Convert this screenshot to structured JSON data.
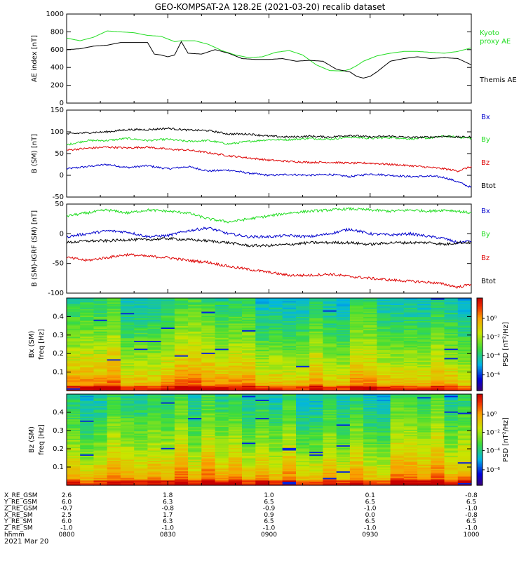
{
  "title": "GEO-KOMPSAT-2A 128.2E (2021-03-20) recalib dataset",
  "colors": {
    "black": "#000000",
    "green": "#22dd22",
    "blue": "#0000cc",
    "red": "#dd0000",
    "kyoto": "#22dd22"
  },
  "chart_data": [
    {
      "type": "line",
      "ylabel": "AE index [nT]",
      "ylim": [
        0,
        1000
      ],
      "yticks": [
        "0",
        "200",
        "400",
        "600",
        "800",
        "1000"
      ],
      "x_range": [
        "08:00",
        "10:00"
      ],
      "series": [
        {
          "name": "Kyoto proxy AE",
          "color": "#22dd22",
          "x": [
            0,
            4,
            8,
            12,
            16,
            20,
            24,
            28,
            30,
            32,
            34,
            38,
            42,
            46,
            50,
            54,
            58,
            62,
            66,
            70,
            74,
            78,
            82,
            84,
            86,
            88,
            92,
            96,
            100,
            104,
            108,
            112,
            116,
            120
          ],
          "values": [
            730,
            700,
            740,
            810,
            800,
            790,
            760,
            750,
            720,
            690,
            700,
            700,
            660,
            590,
            540,
            510,
            520,
            570,
            590,
            540,
            430,
            365,
            360,
            380,
            420,
            470,
            530,
            560,
            580,
            580,
            570,
            560,
            580,
            620
          ]
        },
        {
          "name": "Themis AE",
          "color": "#000000",
          "x": [
            0,
            4,
            8,
            12,
            16,
            20,
            24,
            26,
            28,
            30,
            32,
            34,
            36,
            40,
            44,
            48,
            52,
            56,
            60,
            64,
            68,
            72,
            76,
            80,
            84,
            86,
            88,
            90,
            92,
            96,
            100,
            104,
            108,
            112,
            116,
            120
          ],
          "values": [
            600,
            610,
            640,
            650,
            680,
            680,
            680,
            550,
            540,
            520,
            540,
            690,
            560,
            550,
            600,
            560,
            500,
            490,
            490,
            500,
            470,
            480,
            470,
            380,
            350,
            300,
            280,
            300,
            350,
            470,
            500,
            520,
            500,
            510,
            500,
            430
          ]
        }
      ]
    },
    {
      "type": "line",
      "ylabel": "B (SM) [nT]",
      "ylim": [
        -50,
        150
      ],
      "yticks": [
        "-50",
        "0",
        "50",
        "100",
        "150"
      ],
      "series": [
        {
          "name": "Bx",
          "color": "#0000cc",
          "x": [
            0,
            6,
            12,
            18,
            24,
            30,
            36,
            42,
            48,
            54,
            60,
            66,
            72,
            78,
            84,
            90,
            96,
            102,
            108,
            112,
            116,
            120
          ],
          "values": [
            15,
            20,
            25,
            18,
            22,
            15,
            20,
            10,
            12,
            5,
            0,
            2,
            0,
            2,
            -3,
            3,
            0,
            -3,
            -2,
            -5,
            -15,
            -28
          ]
        },
        {
          "name": "By",
          "color": "#22dd22",
          "x": [
            0,
            6,
            12,
            18,
            24,
            30,
            36,
            42,
            48,
            54,
            60,
            66,
            72,
            78,
            84,
            90,
            96,
            102,
            108,
            112,
            116,
            120
          ],
          "values": [
            70,
            80,
            80,
            85,
            80,
            83,
            78,
            80,
            72,
            78,
            82,
            82,
            85,
            83,
            88,
            85,
            87,
            84,
            86,
            90,
            88,
            85
          ]
        },
        {
          "name": "Bz",
          "color": "#dd0000",
          "x": [
            0,
            6,
            12,
            18,
            24,
            30,
            36,
            42,
            48,
            54,
            60,
            66,
            72,
            78,
            84,
            90,
            96,
            102,
            108,
            112,
            116,
            120
          ],
          "values": [
            58,
            62,
            65,
            63,
            65,
            60,
            58,
            52,
            45,
            40,
            35,
            32,
            30,
            30,
            28,
            28,
            25,
            22,
            18,
            15,
            10,
            20
          ]
        },
        {
          "name": "Btot",
          "color": "#000000",
          "x": [
            0,
            6,
            12,
            18,
            24,
            30,
            36,
            42,
            48,
            54,
            60,
            66,
            72,
            78,
            84,
            90,
            96,
            102,
            108,
            112,
            116,
            120
          ],
          "values": [
            95,
            98,
            100,
            105,
            105,
            108,
            104,
            103,
            95,
            95,
            90,
            88,
            90,
            88,
            92,
            88,
            90,
            87,
            88,
            90,
            88,
            88
          ]
        }
      ]
    },
    {
      "type": "line",
      "ylabel": "B (SM)-IGRF (SM) [nT]",
      "ylim": [
        -100,
        50
      ],
      "yticks": [
        "-100",
        "-50",
        "0",
        "50"
      ],
      "series": [
        {
          "name": "Bx",
          "color": "#0000cc",
          "x": [
            0,
            6,
            12,
            18,
            24,
            30,
            36,
            42,
            48,
            54,
            60,
            66,
            72,
            78,
            84,
            90,
            96,
            102,
            108,
            112,
            116,
            120
          ],
          "values": [
            -5,
            0,
            5,
            3,
            -5,
            -3,
            5,
            10,
            0,
            -5,
            -5,
            -3,
            -5,
            0,
            8,
            0,
            -2,
            0,
            -5,
            -8,
            -15,
            -12
          ]
        },
        {
          "name": "By",
          "color": "#22dd22",
          "x": [
            0,
            6,
            12,
            18,
            24,
            30,
            36,
            42,
            48,
            54,
            60,
            66,
            72,
            78,
            84,
            90,
            96,
            102,
            108,
            112,
            116,
            120
          ],
          "values": [
            30,
            35,
            40,
            35,
            40,
            38,
            35,
            25,
            20,
            25,
            30,
            35,
            38,
            40,
            42,
            40,
            38,
            40,
            38,
            40,
            38,
            35
          ]
        },
        {
          "name": "Bz",
          "color": "#dd0000",
          "x": [
            0,
            6,
            12,
            18,
            24,
            30,
            36,
            42,
            48,
            54,
            60,
            66,
            72,
            78,
            84,
            90,
            96,
            102,
            108,
            112,
            116,
            120
          ],
          "values": [
            -40,
            -45,
            -40,
            -35,
            -38,
            -40,
            -45,
            -48,
            -55,
            -60,
            -65,
            -70,
            -70,
            -68,
            -72,
            -75,
            -78,
            -80,
            -82,
            -85,
            -90,
            -85
          ]
        },
        {
          "name": "Btot",
          "color": "#000000",
          "x": [
            0,
            6,
            12,
            18,
            24,
            30,
            36,
            42,
            48,
            54,
            60,
            66,
            72,
            78,
            84,
            90,
            96,
            102,
            108,
            112,
            116,
            120
          ],
          "values": [
            -15,
            -12,
            -12,
            -10,
            -10,
            -8,
            -10,
            -12,
            -15,
            -20,
            -20,
            -18,
            -15,
            -15,
            -15,
            -18,
            -15,
            -15,
            -15,
            -18,
            -15,
            -15
          ]
        }
      ]
    },
    {
      "type": "heatmap",
      "ylabel": "Bx (SM)",
      "ylabel2": "freq [Hz]",
      "ylim": [
        0,
        0.5
      ],
      "yticks": [
        "0.1",
        "0.2",
        "0.3",
        "0.4"
      ],
      "colorbar_label": "PSD [nT²/Hz]",
      "colorbar_ticks": [
        "10⁰",
        "10⁻²",
        "10⁻⁴",
        "10⁻⁶"
      ]
    },
    {
      "type": "heatmap",
      "ylabel": "Bz (SM)",
      "ylabel2": "freq [Hz]",
      "ylim": [
        0,
        0.5
      ],
      "yticks": [
        "0.1",
        "0.2",
        "0.3",
        "0.4"
      ],
      "colorbar_label": "PSD [nT²/Hz]",
      "colorbar_ticks": [
        "10⁰",
        "10⁻²",
        "10⁻⁴",
        "10⁻⁶"
      ]
    }
  ],
  "panel1_labels": [
    {
      "text": "Kyoto",
      "color": "#22dd22"
    },
    {
      "text": "proxy AE",
      "color": "#22dd22"
    },
    {
      "text": "Themis AE",
      "color": "#000000"
    }
  ],
  "panel2_labels": [
    {
      "text": "Bx",
      "color": "#0000cc"
    },
    {
      "text": "By",
      "color": "#22dd22"
    },
    {
      "text": "Bz",
      "color": "#dd0000"
    },
    {
      "text": "Btot",
      "color": "#000000"
    }
  ],
  "panel3_labels": [
    {
      "text": "Bx",
      "color": "#0000cc"
    },
    {
      "text": "By",
      "color": "#22dd22"
    },
    {
      "text": "Bz",
      "color": "#dd0000"
    },
    {
      "text": "Btot",
      "color": "#000000"
    }
  ],
  "ephemeris": {
    "rows": [
      {
        "label": "X_RE_GSM",
        "values": [
          "2.6",
          "1.8",
          "1.0",
          "0.1",
          "-0.8"
        ]
      },
      {
        "label": "Y_RE_GSM",
        "values": [
          "6.0",
          "6.3",
          "6.5",
          "6.5",
          "6.5"
        ]
      },
      {
        "label": "Z_RE_GSM",
        "values": [
          "-0.7",
          "-0.8",
          "-0.9",
          "-1.0",
          "-1.0"
        ]
      },
      {
        "label": "X_RE_SM",
        "values": [
          "2.5",
          "1.7",
          "0.9",
          "0.0",
          "-0.8"
        ]
      },
      {
        "label": "Y_RE_SM",
        "values": [
          "6.0",
          "6.3",
          "6.5",
          "6.5",
          "6.5"
        ]
      },
      {
        "label": "Z_RE_SM",
        "values": [
          "-1.0",
          "-1.0",
          "-1.0",
          "-1.0",
          "-1.0"
        ]
      },
      {
        "label": "hhmm",
        "values": [
          "0800",
          "0830",
          "0900",
          "0930",
          "1000"
        ]
      }
    ],
    "date": "2021 Mar 20"
  }
}
